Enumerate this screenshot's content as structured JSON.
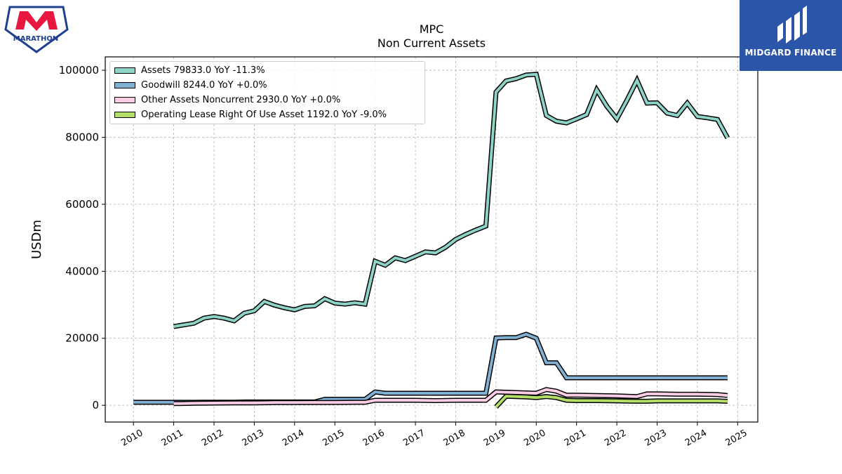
{
  "branding": {
    "left_logo_text": "MARATHON",
    "right_logo_text": "MIDGARD FINANCE",
    "right_logo_color": "#2b55a8",
    "left_logo_color": "#e8173f"
  },
  "chart_data": {
    "type": "line",
    "title": "MPC",
    "subtitle": "Non Current  Assets",
    "xlabel": "",
    "ylabel": "USDm",
    "xlim": [
      2009.3,
      2025.5
    ],
    "ylim": [
      -5000,
      104000
    ],
    "x_ticks": [
      "2010",
      "2011",
      "2012",
      "2013",
      "2014",
      "2015",
      "2016",
      "2017",
      "2018",
      "2019",
      "2020",
      "2021",
      "2022",
      "2023",
      "2024",
      "2025"
    ],
    "y_ticks": [
      "0",
      "20000",
      "40000",
      "60000",
      "80000",
      "100000"
    ],
    "grid": true,
    "legend_position": "upper-left",
    "series": [
      {
        "name": "Assets  79833.0 YoY -11.3%",
        "color": "#8dd3c7",
        "x": [
          2011.0,
          2011.5,
          2011.75,
          2012.0,
          2012.25,
          2012.5,
          2012.75,
          2013.0,
          2013.25,
          2013.5,
          2013.75,
          2014.0,
          2014.25,
          2014.5,
          2014.75,
          2015.0,
          2015.25,
          2015.5,
          2015.75,
          2016.0,
          2016.25,
          2016.5,
          2016.75,
          2017.0,
          2017.25,
          2017.5,
          2017.75,
          2018.0,
          2018.25,
          2018.5,
          2018.75,
          2019.0,
          2019.25,
          2019.5,
          2019.75,
          2020.0,
          2020.25,
          2020.5,
          2020.75,
          2021.0,
          2021.25,
          2021.5,
          2021.75,
          2022.0,
          2022.25,
          2022.5,
          2022.75,
          2023.0,
          2023.25,
          2023.5,
          2023.75,
          2024.0,
          2024.25,
          2024.5,
          2024.75
        ],
        "values": [
          23500,
          24500,
          26000,
          26500,
          26000,
          25200,
          27500,
          28200,
          31000,
          29900,
          29100,
          28500,
          29500,
          29700,
          31800,
          30500,
          30200,
          30600,
          30200,
          43000,
          41800,
          44000,
          43200,
          44500,
          45800,
          45500,
          47200,
          49500,
          51000,
          52300,
          53500,
          93500,
          96800,
          97500,
          98600,
          98800,
          86500,
          84800,
          84300,
          85500,
          86800,
          94200,
          89300,
          85500,
          91000,
          97000,
          90200,
          90300,
          87200,
          86500,
          90200,
          86200,
          85800,
          85300,
          79800
        ]
      },
      {
        "name": "Goodwill  8244.0 YoY +0.0%",
        "color": "#80b1d3",
        "x": [
          2010.0,
          2010.25,
          2010.5,
          2010.75,
          2011.0,
          2011.25,
          2011.5,
          2011.75,
          2012.0,
          2012.25,
          2012.5,
          2012.75,
          2013.0,
          2013.25,
          2013.5,
          2013.75,
          2014.0,
          2014.25,
          2014.5,
          2014.75,
          2015.0,
          2015.25,
          2015.5,
          2015.75,
          2016.0,
          2016.25,
          2016.5,
          2016.75,
          2017.0,
          2017.25,
          2017.5,
          2017.75,
          2018.0,
          2018.25,
          2018.5,
          2018.75,
          2019.0,
          2019.25,
          2019.5,
          2019.75,
          2020.0,
          2020.25,
          2020.5,
          2020.75,
          2021.0,
          2021.25,
          2021.5,
          2021.75,
          2022.0,
          2022.25,
          2022.5,
          2022.75,
          2023.0,
          2023.25,
          2023.5,
          2023.75,
          2024.0,
          2024.25,
          2024.5,
          2024.75
        ],
        "values": [
          900,
          900,
          900,
          900,
          900,
          900,
          900,
          930,
          930,
          930,
          930,
          1000,
          1000,
          1000,
          1000,
          1000,
          1000,
          1000,
          1000,
          1800,
          1800,
          1800,
          1800,
          1800,
          4000,
          3600,
          3600,
          3600,
          3600,
          3600,
          3600,
          3600,
          3600,
          3600,
          3600,
          3600,
          20100,
          20200,
          20200,
          21200,
          20000,
          12700,
          12700,
          8200,
          8200,
          8200,
          8200,
          8200,
          8200,
          8200,
          8200,
          8200,
          8200,
          8200,
          8200,
          8200,
          8200,
          8200,
          8200,
          8200
        ]
      },
      {
        "name": "Other Assets Noncurrent  2930.0 YoY +0.0%",
        "color": "#fccde5",
        "x": [
          2011.0,
          2011.5,
          2012.0,
          2012.5,
          2013.0,
          2013.5,
          2014.0,
          2014.5,
          2015.0,
          2015.5,
          2015.75,
          2016.0,
          2016.5,
          2017.0,
          2017.5,
          2018.0,
          2018.5,
          2018.75,
          2019.0,
          2019.5,
          2020.0,
          2020.25,
          2020.5,
          2020.75,
          2021.0,
          2021.5,
          2022.0,
          2022.5,
          2022.75,
          2023.0,
          2023.5,
          2024.0,
          2024.5,
          2024.75
        ],
        "values": [
          500,
          600,
          650,
          700,
          700,
          800,
          800,
          850,
          850,
          900,
          900,
          1500,
          1500,
          1500,
          1400,
          1500,
          1500,
          1500,
          4000,
          3800,
          3600,
          4700,
          4200,
          3000,
          3000,
          2900,
          2800,
          2600,
          3400,
          3400,
          3300,
          3300,
          3200,
          2930
        ]
      },
      {
        "name": "Operating Lease Right Of Use Asset  1192.0 YoY -9.0%",
        "color": "#b3de69",
        "x": [
          2019.0,
          2019.25,
          2019.5,
          2019.75,
          2020.0,
          2020.25,
          2020.5,
          2020.75,
          2021.0,
          2021.5,
          2022.0,
          2022.5,
          2022.75,
          2023.0,
          2023.5,
          2024.0,
          2024.5,
          2024.75
        ],
        "values": [
          -500,
          2700,
          2600,
          2500,
          2300,
          2600,
          2300,
          1500,
          1400,
          1400,
          1300,
          1200,
          1200,
          1300,
          1300,
          1300,
          1300,
          1192
        ]
      }
    ]
  }
}
